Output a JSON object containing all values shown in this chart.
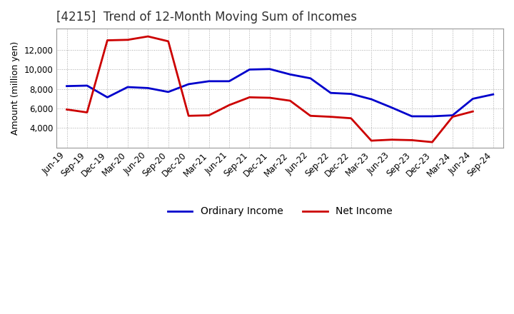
{
  "title": "[4215]  Trend of 12-Month Moving Sum of Incomes",
  "ylabel": "Amount (million yen)",
  "x_labels": [
    "Jun-19",
    "Sep-19",
    "Dec-19",
    "Mar-20",
    "Jun-20",
    "Sep-20",
    "Dec-20",
    "Mar-21",
    "Jun-21",
    "Sep-21",
    "Dec-21",
    "Mar-22",
    "Jun-22",
    "Sep-22",
    "Dec-22",
    "Mar-23",
    "Jun-23",
    "Sep-23",
    "Dec-23",
    "Mar-24",
    "Jun-24",
    "Sep-24"
  ],
  "ordinary_income": [
    8300,
    8350,
    7150,
    8200,
    8100,
    7700,
    8500,
    8800,
    8800,
    10000,
    10050,
    9500,
    9100,
    7600,
    7500,
    6950,
    6100,
    5200,
    5200,
    5300,
    7000,
    7450
  ],
  "net_income": [
    5900,
    5600,
    13000,
    13050,
    13400,
    12900,
    5250,
    5300,
    6350,
    7150,
    7100,
    6800,
    5250,
    5150,
    5000,
    2700,
    2800,
    2750,
    2550,
    5150,
    5700,
    null
  ],
  "ordinary_color": "#0000cc",
  "net_color": "#cc0000",
  "background_color": "#ffffff",
  "grid_color": "#aaaaaa",
  "ylim": [
    2000,
    14200
  ],
  "yticks": [
    4000,
    6000,
    8000,
    10000,
    12000
  ],
  "title_color": "#333333",
  "legend_labels": [
    "Ordinary Income",
    "Net Income"
  ],
  "line_width": 2.0,
  "title_fontsize": 12,
  "ylabel_fontsize": 9,
  "tick_fontsize": 8.5,
  "legend_fontsize": 10
}
